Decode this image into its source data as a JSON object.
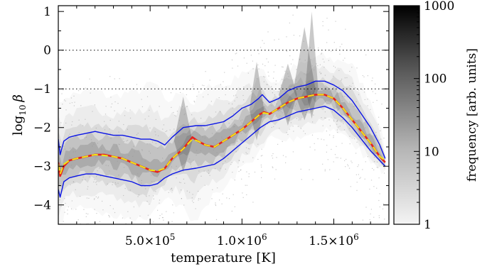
{
  "chart_data": {
    "type": "heatmap",
    "title": "",
    "xlabel": "temperature [K]",
    "ylabel_prefix": "log",
    "ylabel_sub": "10",
    "ylabel_symbol": "β",
    "xlim": [
      0,
      1800000
    ],
    "ylim": [
      -4.5,
      1.15
    ],
    "x_ticks": [
      {
        "value": 500000,
        "mantissa": "5.0",
        "exponent": "5"
      },
      {
        "value": 1000000,
        "mantissa": "1.0",
        "exponent": "6"
      },
      {
        "value": 1500000,
        "mantissa": "1.5",
        "exponent": "6"
      }
    ],
    "y_ticks": [
      {
        "value": 1,
        "label": "1"
      },
      {
        "value": 0,
        "label": "0"
      },
      {
        "value": -1,
        "label": "−1"
      },
      {
        "value": -2,
        "label": "−2"
      },
      {
        "value": -3,
        "label": "−3"
      },
      {
        "value": -4,
        "label": "−4"
      }
    ],
    "reference_lines": [
      0,
      -1
    ],
    "colorbar": {
      "label": "frequency [arb. units]",
      "scale": "log",
      "range": [
        1,
        1000
      ],
      "ticks": [
        {
          "value": 1,
          "label": "1"
        },
        {
          "value": 10,
          "label": "10"
        },
        {
          "value": 100,
          "label": "100"
        },
        {
          "value": 1000,
          "label": "1000"
        }
      ]
    },
    "series": [
      {
        "role": "upper-bound",
        "color": "#0a14e6",
        "x": [
          0,
          10000,
          30000,
          60000,
          100000,
          150000,
          200000,
          250000,
          300000,
          350000,
          400000,
          450000,
          500000,
          540000,
          580000,
          620000,
          680000,
          750000,
          800000,
          850000,
          900000,
          950000,
          1000000,
          1050000,
          1090000,
          1110000,
          1150000,
          1200000,
          1250000,
          1300000,
          1350000,
          1400000,
          1450000,
          1500000,
          1550000,
          1600000,
          1650000,
          1700000,
          1750000,
          1780000
        ],
        "y": [
          -2.3,
          -2.7,
          -2.35,
          -2.25,
          -2.2,
          -2.15,
          -2.1,
          -2.15,
          -2.2,
          -2.2,
          -2.25,
          -2.3,
          -2.3,
          -2.35,
          -2.45,
          -2.25,
          -2.0,
          -1.95,
          -1.95,
          -1.9,
          -1.85,
          -1.7,
          -1.5,
          -1.4,
          -1.25,
          -1.15,
          -1.35,
          -1.25,
          -1.05,
          -0.95,
          -0.9,
          -0.8,
          -0.8,
          -0.9,
          -1.05,
          -1.3,
          -1.65,
          -2.0,
          -2.45,
          -2.8
        ]
      },
      {
        "role": "mean",
        "color": "#e6231e",
        "x": [
          0,
          10000,
          30000,
          60000,
          100000,
          150000,
          200000,
          250000,
          300000,
          350000,
          400000,
          450000,
          500000,
          540000,
          580000,
          620000,
          680000,
          730000,
          760000,
          800000,
          850000,
          900000,
          950000,
          1000000,
          1050000,
          1100000,
          1120000,
          1150000,
          1200000,
          1250000,
          1300000,
          1350000,
          1400000,
          1450000,
          1500000,
          1550000,
          1600000,
          1650000,
          1700000,
          1750000,
          1780000
        ],
        "y": [
          -2.9,
          -3.25,
          -3.0,
          -2.85,
          -2.8,
          -2.75,
          -2.7,
          -2.7,
          -2.75,
          -2.8,
          -2.9,
          -3.0,
          -3.1,
          -3.15,
          -3.05,
          -2.8,
          -2.55,
          -2.25,
          -2.35,
          -2.45,
          -2.5,
          -2.35,
          -2.2,
          -2.05,
          -1.85,
          -1.65,
          -1.6,
          -1.65,
          -1.5,
          -1.35,
          -1.25,
          -1.2,
          -1.15,
          -1.15,
          -1.25,
          -1.5,
          -1.8,
          -2.1,
          -2.4,
          -2.75,
          -2.9
        ]
      },
      {
        "role": "median",
        "color": "#f0e614",
        "x": [
          0,
          10000,
          30000,
          60000,
          100000,
          150000,
          200000,
          250000,
          300000,
          350000,
          400000,
          450000,
          500000,
          540000,
          580000,
          620000,
          680000,
          730000,
          760000,
          800000,
          850000,
          900000,
          950000,
          1000000,
          1050000,
          1100000,
          1120000,
          1150000,
          1200000,
          1250000,
          1300000,
          1350000,
          1400000,
          1450000,
          1500000,
          1550000,
          1600000,
          1650000,
          1700000,
          1750000,
          1780000
        ],
        "y": [
          -2.95,
          -3.2,
          -2.95,
          -2.85,
          -2.8,
          -2.75,
          -2.7,
          -2.72,
          -2.75,
          -2.8,
          -2.9,
          -3.0,
          -3.1,
          -3.12,
          -3.05,
          -2.8,
          -2.55,
          -2.3,
          -2.35,
          -2.45,
          -2.5,
          -2.35,
          -2.2,
          -2.05,
          -1.85,
          -1.65,
          -1.62,
          -1.65,
          -1.5,
          -1.35,
          -1.25,
          -1.2,
          -1.15,
          -1.15,
          -1.25,
          -1.5,
          -1.8,
          -2.1,
          -2.4,
          -2.75,
          -2.85
        ]
      },
      {
        "role": "lower-bound",
        "color": "#0a14e6",
        "x": [
          0,
          10000,
          30000,
          60000,
          100000,
          150000,
          200000,
          250000,
          300000,
          350000,
          400000,
          450000,
          500000,
          540000,
          580000,
          620000,
          680000,
          750000,
          800000,
          850000,
          900000,
          950000,
          1000000,
          1050000,
          1100000,
          1150000,
          1200000,
          1250000,
          1300000,
          1350000,
          1400000,
          1450000,
          1500000,
          1550000,
          1600000,
          1650000,
          1700000,
          1750000,
          1780000
        ],
        "y": [
          -3.6,
          -3.8,
          -3.4,
          -3.3,
          -3.25,
          -3.2,
          -3.2,
          -3.25,
          -3.3,
          -3.35,
          -3.4,
          -3.5,
          -3.5,
          -3.45,
          -3.3,
          -3.2,
          -3.1,
          -3.05,
          -3.0,
          -2.95,
          -2.8,
          -2.6,
          -2.4,
          -2.2,
          -2.0,
          -1.85,
          -1.8,
          -1.7,
          -1.6,
          -1.55,
          -1.5,
          -1.45,
          -1.55,
          -1.75,
          -2.0,
          -2.3,
          -2.6,
          -2.85,
          -3.0
        ]
      }
    ]
  }
}
